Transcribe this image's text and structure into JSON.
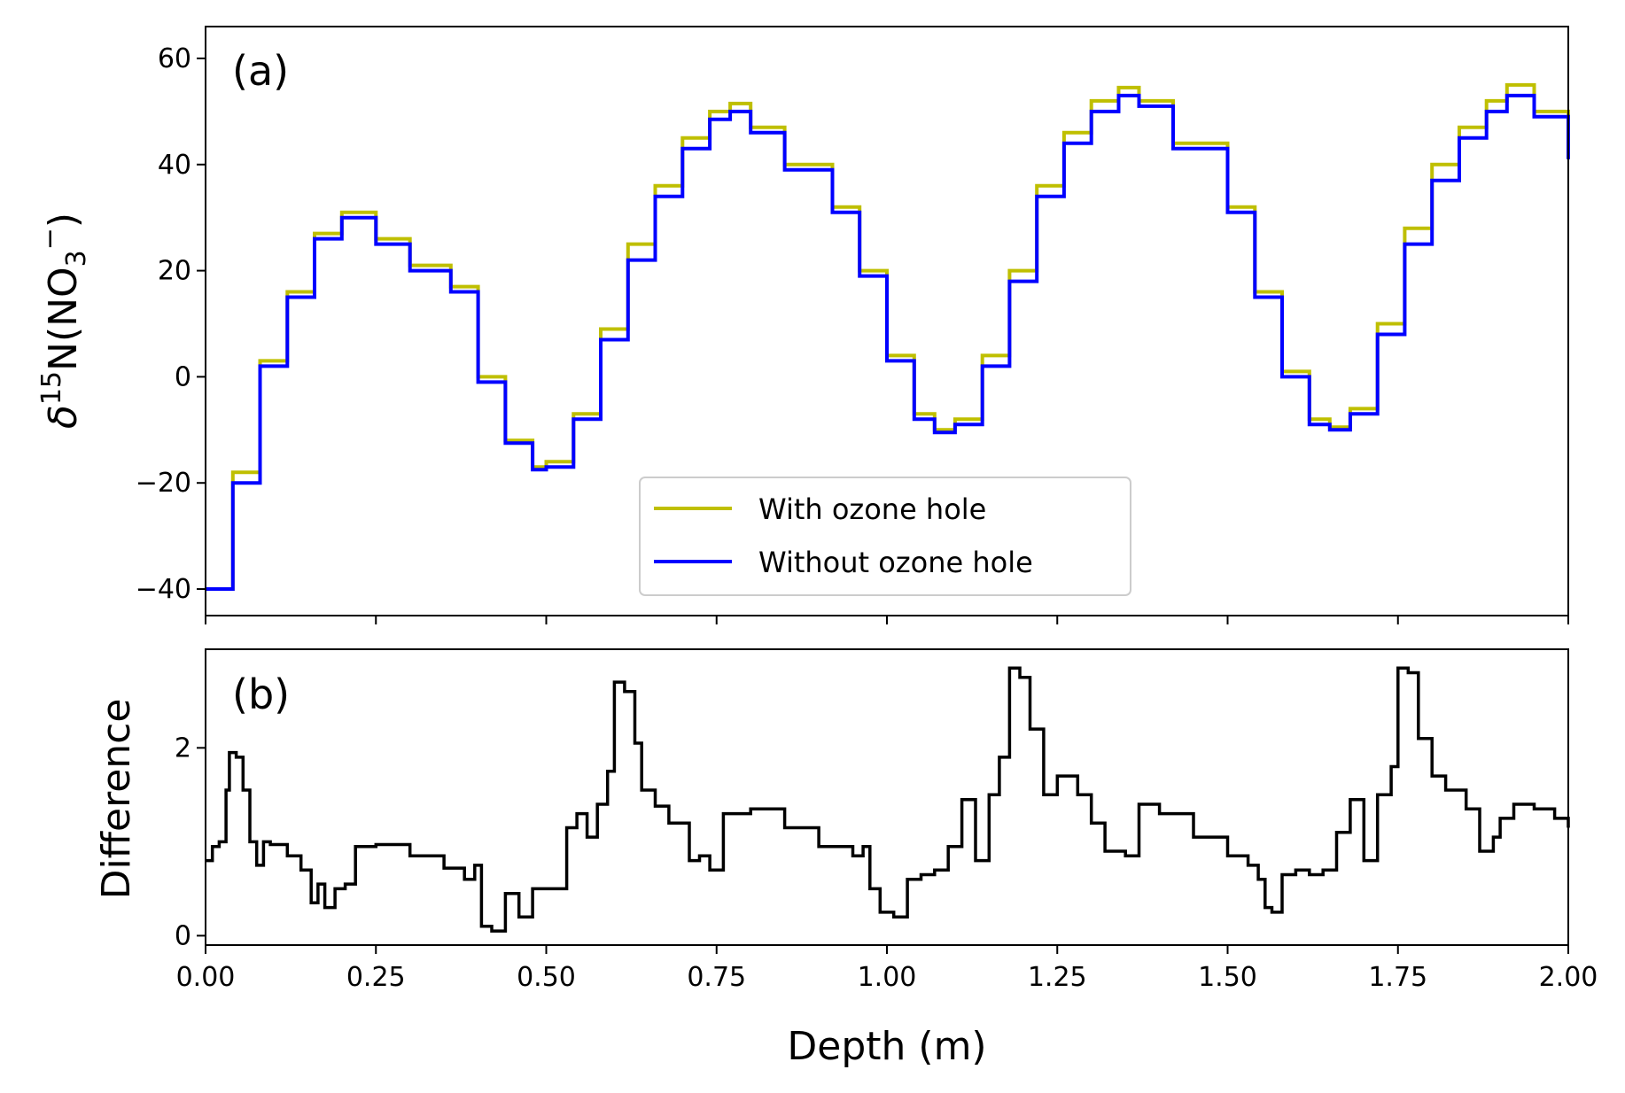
{
  "chart_data": [
    {
      "type": "line",
      "panel_label": "(a)",
      "xlabel": "",
      "ylabel": "δ15N(NO3−)",
      "ylabel_parts": {
        "delta": "δ",
        "mass": "15",
        "species": "N(NO",
        "sub": "3",
        "sup": "−",
        "close": ")"
      },
      "xlim": [
        0,
        2.0
      ],
      "ylim": [
        -45,
        66
      ],
      "yticks": [
        -40,
        -20,
        0,
        20,
        40,
        60
      ],
      "ytick_labels": [
        "−40",
        "−20",
        "0",
        "20",
        "40",
        "60"
      ],
      "grid": false,
      "legend_position": "lower-center",
      "series": [
        {
          "name": "With ozone hole",
          "color": "#bfbf00",
          "x": [
            0.0,
            0.04,
            0.08,
            0.12,
            0.16,
            0.2,
            0.25,
            0.3,
            0.36,
            0.4,
            0.44,
            0.48,
            0.5,
            0.54,
            0.58,
            0.62,
            0.66,
            0.7,
            0.74,
            0.77,
            0.8,
            0.85,
            0.92,
            0.96,
            1.0,
            1.04,
            1.07,
            1.1,
            1.14,
            1.18,
            1.22,
            1.26,
            1.3,
            1.34,
            1.37,
            1.42,
            1.5,
            1.54,
            1.58,
            1.62,
            1.65,
            1.68,
            1.72,
            1.76,
            1.8,
            1.84,
            1.88,
            1.91,
            1.95,
            2.0
          ],
          "values": [
            -40,
            -18,
            3,
            16,
            27,
            31,
            26,
            21,
            17,
            0,
            -12,
            -17,
            -16,
            -7,
            9,
            25,
            36,
            45,
            50,
            51.5,
            47,
            40,
            32,
            20,
            4,
            -7,
            -10,
            -8,
            4,
            20,
            36,
            46,
            52,
            54.5,
            52,
            44,
            32,
            16,
            1,
            -8,
            -9.5,
            -6,
            10,
            28,
            40,
            47,
            52,
            55,
            50,
            42
          ]
        },
        {
          "name": "Without ozone hole",
          "color": "#0000ff",
          "x": [
            0.0,
            0.04,
            0.08,
            0.12,
            0.16,
            0.2,
            0.25,
            0.3,
            0.36,
            0.4,
            0.44,
            0.48,
            0.5,
            0.54,
            0.58,
            0.62,
            0.66,
            0.7,
            0.74,
            0.77,
            0.8,
            0.85,
            0.92,
            0.96,
            1.0,
            1.04,
            1.07,
            1.1,
            1.14,
            1.18,
            1.22,
            1.26,
            1.3,
            1.34,
            1.37,
            1.42,
            1.5,
            1.54,
            1.58,
            1.62,
            1.65,
            1.68,
            1.72,
            1.76,
            1.8,
            1.84,
            1.88,
            1.91,
            1.95,
            2.0
          ],
          "values": [
            -40,
            -20,
            2,
            15,
            26,
            30,
            25,
            20,
            16,
            -1,
            -12.5,
            -17.5,
            -17,
            -8,
            7,
            22,
            34,
            43,
            48.5,
            50,
            46,
            39,
            31,
            19,
            3,
            -8,
            -10.5,
            -9,
            2,
            18,
            34,
            44,
            50,
            53,
            51,
            43,
            31,
            15,
            0,
            -9,
            -10,
            -7,
            8,
            25,
            37,
            45,
            50,
            53,
            49,
            41
          ]
        }
      ]
    },
    {
      "type": "line",
      "panel_label": "(b)",
      "xlabel": "Depth (m)",
      "ylabel": "Difference",
      "xlim": [
        0,
        2.0
      ],
      "ylim": [
        -0.1,
        3.05
      ],
      "xticks": [
        0,
        0.25,
        0.5,
        0.75,
        1.0,
        1.25,
        1.5,
        1.75,
        2.0
      ],
      "xtick_labels": [
        "0.00",
        "0.25",
        "0.50",
        "0.75",
        "1.00",
        "1.25",
        "1.50",
        "1.75",
        "2.00"
      ],
      "yticks": [
        0,
        2
      ],
      "ytick_labels": [
        "0",
        "2"
      ],
      "grid": false,
      "series": [
        {
          "name": "",
          "color": "#000000",
          "x": [
            0.0,
            0.01,
            0.02,
            0.03,
            0.035,
            0.045,
            0.055,
            0.065,
            0.075,
            0.085,
            0.095,
            0.12,
            0.14,
            0.155,
            0.165,
            0.175,
            0.19,
            0.205,
            0.22,
            0.25,
            0.3,
            0.35,
            0.38,
            0.395,
            0.405,
            0.42,
            0.44,
            0.46,
            0.48,
            0.5,
            0.52,
            0.53,
            0.545,
            0.56,
            0.575,
            0.59,
            0.6,
            0.615,
            0.63,
            0.64,
            0.66,
            0.68,
            0.71,
            0.725,
            0.74,
            0.76,
            0.8,
            0.85,
            0.9,
            0.95,
            0.965,
            0.975,
            0.99,
            1.01,
            1.03,
            1.05,
            1.07,
            1.09,
            1.11,
            1.13,
            1.15,
            1.165,
            1.18,
            1.195,
            1.21,
            1.23,
            1.25,
            1.28,
            1.3,
            1.32,
            1.35,
            1.37,
            1.4,
            1.45,
            1.5,
            1.53,
            1.545,
            1.555,
            1.565,
            1.58,
            1.6,
            1.62,
            1.64,
            1.66,
            1.68,
            1.7,
            1.72,
            1.74,
            1.75,
            1.765,
            1.78,
            1.8,
            1.82,
            1.85,
            1.87,
            1.89,
            1.9,
            1.92,
            1.95,
            1.98,
            2.0
          ],
          "values": [
            0.8,
            0.95,
            1.0,
            1.55,
            1.95,
            1.9,
            1.55,
            1.0,
            0.75,
            1.0,
            0.97,
            0.85,
            0.7,
            0.35,
            0.55,
            0.3,
            0.5,
            0.55,
            0.95,
            0.97,
            0.85,
            0.72,
            0.6,
            0.75,
            0.1,
            0.05,
            0.45,
            0.2,
            0.5,
            0.5,
            0.5,
            1.15,
            1.3,
            1.05,
            1.4,
            1.75,
            2.7,
            2.6,
            2.05,
            1.55,
            1.38,
            1.2,
            0.8,
            0.85,
            0.7,
            1.3,
            1.35,
            1.15,
            0.95,
            0.85,
            0.95,
            0.5,
            0.25,
            0.2,
            0.6,
            0.65,
            0.7,
            0.95,
            1.45,
            0.8,
            1.5,
            1.9,
            2.85,
            2.75,
            2.2,
            1.5,
            1.7,
            1.5,
            1.2,
            0.9,
            0.85,
            1.4,
            1.3,
            1.05,
            0.85,
            0.75,
            0.6,
            0.3,
            0.25,
            0.65,
            0.7,
            0.65,
            0.7,
            1.1,
            1.45,
            0.8,
            1.5,
            1.8,
            2.85,
            2.8,
            2.1,
            1.7,
            1.55,
            1.35,
            0.9,
            1.05,
            1.25,
            1.4,
            1.35,
            1.25,
            1.15
          ]
        }
      ]
    }
  ]
}
